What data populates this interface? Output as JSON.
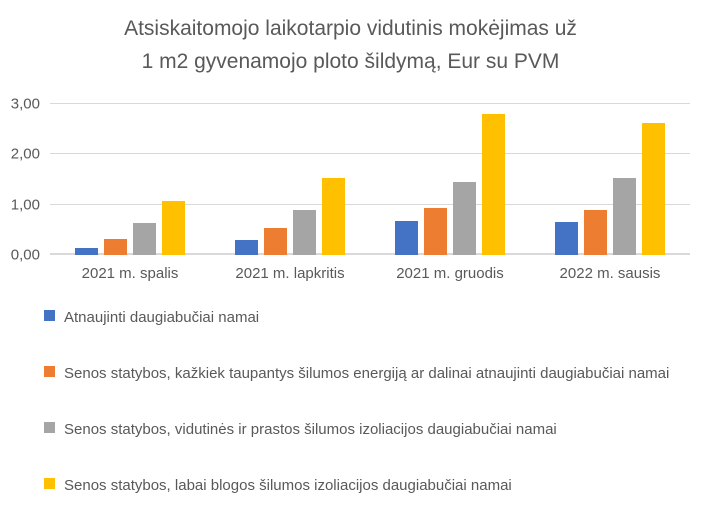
{
  "title": {
    "line1": "Atsiskaitomojo laikotarpio vidutinis mokėjimas už",
    "line2": "1 m2 gyvenamojo ploto šildymą, Eur su PVM"
  },
  "chart_data": {
    "type": "bar",
    "title": "Atsiskaitomojo laikotarpio vidutinis mokėjimas už 1 m2 gyvenamojo ploto šildymą, Eur su PVM",
    "categories": [
      "2021 m. spalis",
      "2021 m. lapkritis",
      "2021 m. gruodis",
      "2022 m. sausis"
    ],
    "series": [
      {
        "name": "Atnaujinti daugiabučiai namai",
        "color": "#4472C4",
        "values": [
          0.15,
          0.3,
          0.67,
          0.65
        ]
      },
      {
        "name": "Senos statybos, kažkiek taupantys šilumos energiją ar dalinai atnaujinti daugiabučiai namai",
        "color": "#ED7D31",
        "values": [
          0.32,
          0.54,
          0.93,
          0.89
        ]
      },
      {
        "name": "Senos statybos, vidutinės ir prastos šilumos izoliacijos daugiabučiai namai",
        "color": "#A5A5A5",
        "values": [
          0.64,
          0.9,
          1.46,
          1.54
        ]
      },
      {
        "name": "Senos statybos, labai blogos šilumos izoliacijos daugiabučiai namai",
        "color": "#FFC000",
        "values": [
          1.08,
          1.53,
          2.8,
          2.63
        ]
      }
    ],
    "xlabel": "",
    "ylabel": "",
    "ylim": [
      0,
      3
    ],
    "yticks": [
      {
        "value": 0,
        "label": "0,00"
      },
      {
        "value": 1,
        "label": "1,00"
      },
      {
        "value": 2,
        "label": "2,00"
      },
      {
        "value": 3,
        "label": "3,00"
      }
    ],
    "grid": true,
    "legend_position": "bottom-left",
    "colors": {
      "gridline": "#d9d9d9",
      "text": "#595959",
      "background": "#ffffff"
    }
  }
}
